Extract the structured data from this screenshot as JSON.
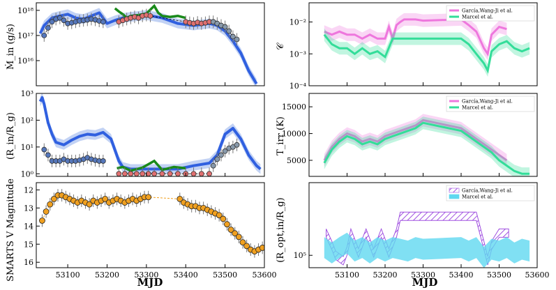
{
  "figure": {
    "x_label": "MJD"
  },
  "colors": {
    "blue": "#3060e0",
    "band": "#a8bff0",
    "green": "#1a8a1a",
    "salmon": "#e07070",
    "orange": "#f0a020",
    "pink": "#ee77dd",
    "teal": "#33dd99",
    "purple": "#a050e0",
    "cyan": "#60d8f0"
  },
  "chart_data": [
    {
      "id": "mdot",
      "type": "line",
      "ylabel": "Ṁ_in (g/s)",
      "yscale": "log",
      "ylim": [
        1000000000000000.0,
        2e+18
      ],
      "xlim": [
        53020,
        53600
      ],
      "yticks": [
        {
          "v": 1e+16,
          "label": "10¹⁶"
        },
        {
          "v": 1e+17,
          "label": "10¹⁷"
        },
        {
          "v": 1e+18,
          "label": "10¹⁸"
        }
      ],
      "series": [
        {
          "key": "blue",
          "x": [
            53030,
            53040,
            53060,
            53080,
            53100,
            53120,
            53140,
            53160,
            53180,
            53200,
            53220,
            53240,
            53260,
            53300,
            53340,
            53380,
            53420,
            53460,
            53480,
            53500,
            53520,
            53540,
            53560,
            53580
          ],
          "y": [
            1.2e+17,
            2.5e+17,
            5e+17,
            6e+17,
            7e+17,
            5e+17,
            4.5e+17,
            6e+17,
            8e+17,
            3e+17,
            4e+17,
            5e+17,
            5.5e+17,
            6.5e+17,
            5e+17,
            3e+17,
            2.5e+17,
            3e+17,
            2.5e+17,
            1.5e+17,
            6e+16,
            2e+16,
            4000000000000000.0,
            1200000000000000.0
          ]
        },
        {
          "key": "green",
          "x": [
            53220,
            53230,
            53240,
            53250,
            53260,
            53280,
            53300,
            53320,
            53330,
            53340,
            53360,
            53380,
            53400
          ],
          "y": [
            1.2e+18,
            9e+17,
            7e+17,
            5e+17,
            6e+17,
            6.5e+17,
            7.5e+17,
            1.5e+18,
            8e+17,
            6e+17,
            5.5e+17,
            6e+17,
            5e+17
          ]
        },
        {
          "key": "circles_blue",
          "x": [
            53040,
            53050,
            53060,
            53070,
            53080,
            53090,
            53100,
            53110,
            53120,
            53130,
            53140,
            53150,
            53160,
            53170,
            53180,
            53190
          ],
          "y": [
            1e+17,
            2e+17,
            3.5e+17,
            4.5e+17,
            5e+17,
            4e+17,
            3e+17,
            3.2e+17,
            3.5e+17,
            3.8e+17,
            4e+17,
            4.2e+17,
            4.5e+17,
            4.2e+17,
            3.8e+17,
            3.5e+17
          ]
        },
        {
          "key": "circles_salmon",
          "x": [
            53230,
            53240,
            53250,
            53260,
            53270,
            53280,
            53290,
            53300,
            53310,
            53400,
            53410,
            53420,
            53430,
            53440,
            53450,
            53460
          ],
          "y": [
            3.5e+17,
            4e+17,
            4.5e+17,
            5e+17,
            5.5e+17,
            5e+17,
            6e+17,
            6.5e+17,
            6e+17,
            3.5e+17,
            3.2e+17,
            3e+17,
            3.3e+17,
            3e+17,
            3.2e+17,
            3.5e+17
          ]
        },
        {
          "key": "circles_gray",
          "x": [
            53470,
            53480,
            53490,
            53500,
            53510,
            53520,
            53530
          ],
          "y": [
            3.5e+17,
            3e+17,
            2.5e+17,
            2.2e+17,
            1.5e+17,
            9e+16,
            7e+16
          ]
        }
      ]
    },
    {
      "id": "rin",
      "type": "line",
      "ylabel": "(R_in/R_g)",
      "yscale": "log",
      "ylim": [
        0.8,
        1000
      ],
      "xlim": [
        53020,
        53600
      ],
      "yticks": [
        {
          "v": 1,
          "label": "10⁰"
        },
        {
          "v": 10,
          "label": "10¹"
        },
        {
          "v": 100,
          "label": "10²"
        },
        {
          "v": 1000,
          "label": "10³"
        }
      ],
      "series": [
        {
          "key": "blue",
          "x": [
            53030,
            53035,
            53040,
            53050,
            53060,
            53070,
            53090,
            53110,
            53130,
            53150,
            53170,
            53190,
            53210,
            53230,
            53240,
            53260,
            53300,
            53340,
            53380,
            53420,
            53460,
            53480,
            53500,
            53520,
            53540,
            53560,
            53580,
            53590
          ],
          "y": [
            500,
            700,
            400,
            80,
            30,
            15,
            12,
            18,
            25,
            30,
            28,
            35,
            20,
            3,
            1.8,
            1.5,
            1.5,
            1.5,
            1.5,
            2,
            2.5,
            5,
            30,
            50,
            20,
            5,
            2,
            1.5
          ]
        },
        {
          "key": "green",
          "x": [
            53225,
            53240,
            53260,
            53290,
            53320,
            53340,
            53370,
            53400
          ],
          "y": [
            1.6,
            1.8,
            1.3,
            1.7,
            3,
            1.4,
            1.8,
            1.6
          ]
        },
        {
          "key": "circles_blue",
          "x": [
            53040,
            53050,
            53060,
            53070,
            53080,
            53090,
            53100,
            53110,
            53120,
            53130,
            53140,
            53150,
            53160,
            53170,
            53180,
            53190
          ],
          "y": [
            8,
            5,
            3,
            3,
            3,
            3.5,
            3,
            3,
            3,
            3.2,
            3.5,
            4,
            3.5,
            3.2,
            3,
            3
          ]
        },
        {
          "key": "circles_salmon",
          "x": [
            53230,
            53245,
            53260,
            53275,
            53290,
            53305,
            53320,
            53340,
            53360,
            53380,
            53400,
            53420,
            53440,
            53460
          ],
          "y": [
            1,
            1,
            1,
            1,
            1,
            1,
            1,
            1,
            1,
            1,
            1,
            1,
            1,
            1
          ]
        },
        {
          "key": "circles_gray",
          "x": [
            53470,
            53480,
            53490,
            53500,
            53510,
            53520,
            53530
          ],
          "y": [
            2,
            3.5,
            5,
            7,
            9,
            10,
            12
          ]
        }
      ]
    },
    {
      "id": "vmag",
      "type": "scatter",
      "ylabel": "SMARTS V Magnitude",
      "yscale": "linear",
      "yinvert": true,
      "ylim": [
        16.3,
        11.6
      ],
      "xlim": [
        53020,
        53600
      ],
      "yticks": [
        {
          "v": 12,
          "label": "12"
        },
        {
          "v": 13,
          "label": "13"
        },
        {
          "v": 14,
          "label": "14"
        },
        {
          "v": 15,
          "label": "15"
        },
        {
          "v": 16,
          "label": "16"
        }
      ],
      "xticks": [
        53100,
        53200,
        53300,
        53400,
        53500,
        53600
      ],
      "series": [
        {
          "key": "orange",
          "x": [
            53035,
            53045,
            53055,
            53065,
            53075,
            53085,
            53095,
            53105,
            53115,
            53125,
            53135,
            53145,
            53155,
            53165,
            53175,
            53185,
            53195,
            53205,
            53215,
            53225,
            53235,
            53245,
            53255,
            53265,
            53275,
            53285,
            53295,
            53305,
            53385,
            53395,
            53405,
            53415,
            53425,
            53435,
            53445,
            53455,
            53465,
            53475,
            53485,
            53495,
            53505,
            53515,
            53525,
            53535,
            53545,
            53555,
            53565,
            53575,
            53585,
            53595
          ],
          "y": [
            13.7,
            13.2,
            12.8,
            12.5,
            12.3,
            12.3,
            12.4,
            12.5,
            12.6,
            12.7,
            12.6,
            12.7,
            12.8,
            12.6,
            12.7,
            12.6,
            12.5,
            12.7,
            12.6,
            12.5,
            12.6,
            12.7,
            12.6,
            12.5,
            12.6,
            12.5,
            12.4,
            12.4,
            12.5,
            12.7,
            12.8,
            12.9,
            12.9,
            13.0,
            13.0,
            13.1,
            13.2,
            13.3,
            13.4,
            13.6,
            13.9,
            14.2,
            14.4,
            14.6,
            14.9,
            15.1,
            15.3,
            15.4,
            15.3,
            15.2
          ]
        }
      ]
    },
    {
      "id": "c",
      "type": "line",
      "ylabel": "𝒞",
      "yscale": "log",
      "ylim": [
        0.0001,
        0.04
      ],
      "xlim": [
        53000,
        53600
      ],
      "yticks": [
        {
          "v": 0.0001,
          "label": "10⁻⁴"
        },
        {
          "v": 0.001,
          "label": "10⁻³"
        },
        {
          "v": 0.01,
          "label": "10⁻²"
        }
      ],
      "legend": [
        "García,Wang-Ji et al.",
        "Marcel et al."
      ],
      "series": [
        {
          "key": "pink",
          "x": [
            53040,
            53060,
            53080,
            53100,
            53120,
            53140,
            53160,
            53180,
            53200,
            53210,
            53220,
            53230,
            53240,
            53250,
            53260,
            53280,
            53300,
            53400,
            53420,
            53440,
            53460,
            53470,
            53480,
            53500,
            53520
          ],
          "y": [
            0.005,
            0.004,
            0.005,
            0.004,
            0.004,
            0.003,
            0.004,
            0.003,
            0.003,
            0.007,
            0.003,
            0.008,
            0.01,
            0.012,
            0.012,
            0.012,
            0.011,
            0.012,
            0.008,
            0.005,
            0.0015,
            0.001,
            0.004,
            0.007,
            0.006
          ]
        },
        {
          "key": "teal",
          "x": [
            53040,
            53060,
            53080,
            53100,
            53120,
            53140,
            53160,
            53180,
            53200,
            53220,
            53240,
            53260,
            53280,
            53300,
            53400,
            53420,
            53440,
            53460,
            53470,
            53480,
            53500,
            53520,
            53540,
            53560,
            53580
          ],
          "y": [
            0.004,
            0.002,
            0.0015,
            0.0015,
            0.001,
            0.0015,
            0.001,
            0.0012,
            0.0008,
            0.003,
            0.003,
            0.003,
            0.003,
            0.003,
            0.003,
            0.002,
            0.001,
            0.0005,
            0.0003,
            0.0012,
            0.002,
            0.0025,
            0.0015,
            0.0012,
            0.0015
          ]
        }
      ]
    },
    {
      "id": "tirr",
      "type": "line",
      "ylabel": "T_irr (K)",
      "yscale": "linear",
      "ylim": [
        2000,
        17500
      ],
      "xlim": [
        53000,
        53600
      ],
      "yticks": [
        {
          "v": 5000,
          "label": "5000"
        },
        {
          "v": 10000,
          "label": "10000"
        },
        {
          "v": 15000,
          "label": "15000"
        }
      ],
      "legend": [
        "García,Wang-Ji et al.",
        "Marcel et al."
      ],
      "series": [
        {
          "key": "pink",
          "x": [
            53040,
            53060,
            53080,
            53100,
            53120,
            53140,
            53160,
            53180,
            53200,
            53220,
            53240,
            53260,
            53280,
            53300,
            53400,
            53420,
            53440,
            53460,
            53480,
            53500,
            53520
          ],
          "y": [
            5000,
            7500,
            9000,
            10000,
            9500,
            8500,
            9000,
            8500,
            9500,
            10000,
            10500,
            11000,
            11500,
            12500,
            11000,
            10000,
            9000,
            8000,
            7000,
            6000,
            5000
          ]
        },
        {
          "key": "teal",
          "x": [
            53040,
            53060,
            53080,
            53100,
            53120,
            53140,
            53160,
            53180,
            53200,
            53220,
            53240,
            53260,
            53280,
            53300,
            53400,
            53420,
            53440,
            53460,
            53480,
            53500,
            53520,
            53540,
            53560,
            53580
          ],
          "y": [
            4500,
            7000,
            8500,
            9500,
            9000,
            8000,
            8500,
            8000,
            9000,
            9500,
            10000,
            10500,
            11000,
            12000,
            10500,
            9500,
            8500,
            7500,
            6500,
            5000,
            4000,
            3000,
            2500,
            2500
          ]
        }
      ]
    },
    {
      "id": "ropt",
      "type": "area",
      "ylabel": "(R_opt,in/R_g)",
      "yscale": "log",
      "ylim": [
        60000.0,
        2000000.0
      ],
      "xlim": [
        53000,
        53600
      ],
      "yticks": [
        {
          "v": 100000.0,
          "label": "10⁵"
        }
      ],
      "xticks": [
        53100,
        53200,
        53300,
        53400,
        53500,
        53600
      ],
      "legend": [
        "García,Wang-Ji et al.",
        "Marcel et al."
      ],
      "series": [
        {
          "key": "purple_hatch",
          "x": [
            53045,
            53060,
            53070,
            53090,
            53100,
            53110,
            53130,
            53150,
            53170,
            53190,
            53210,
            53230,
            53240,
            53300,
            53400,
            53440,
            53460,
            53470,
            53480,
            53500,
            53525
          ],
          "y": [
            250000.0,
            150000.0,
            100000.0,
            80000.0,
            120000.0,
            250000.0,
            110000.0,
            250000.0,
            110000.0,
            250000.0,
            110000.0,
            250000.0,
            500000.0,
            500000.0,
            500000.0,
            500000.0,
            150000.0,
            80000.0,
            150000.0,
            250000.0,
            250000.0
          ]
        },
        {
          "key": "cyan_band",
          "x": [
            53040,
            53060,
            53080,
            53100,
            53120,
            53140,
            53160,
            53180,
            53200,
            53220,
            53240,
            53260,
            53280,
            53300,
            53400,
            53420,
            53440,
            53460,
            53480,
            53500,
            53520,
            53540,
            53560,
            53580
          ],
          "y": [
            150000.0,
            120000.0,
            150000.0,
            180000.0,
            130000.0,
            150000.0,
            120000.0,
            150000.0,
            130000.0,
            150000.0,
            140000.0,
            130000.0,
            150000.0,
            140000.0,
            150000.0,
            130000.0,
            150000.0,
            100000.0,
            140000.0,
            130000.0,
            150000.0,
            120000.0,
            140000.0,
            130000.0
          ]
        }
      ]
    }
  ]
}
